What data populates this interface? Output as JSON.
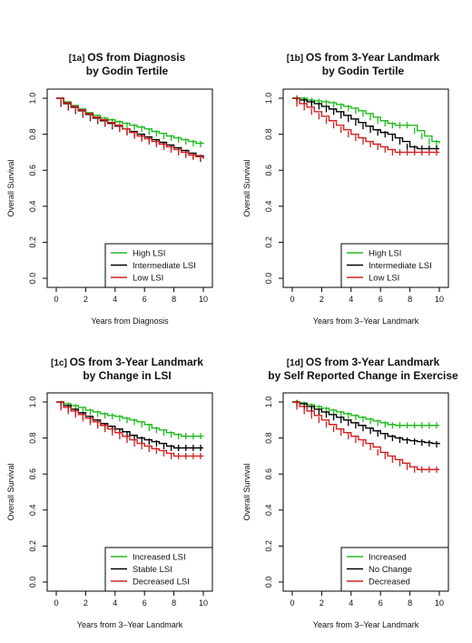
{
  "chart_data": [
    {
      "type": "line",
      "tag": "[1a]",
      "title": "OS from Diagnosis",
      "subtitle": "by Godin Tertile",
      "xlabel": "Years from Diagnosis",
      "ylabel": "Overall Survival",
      "xlim": [
        0,
        10
      ],
      "ylim": [
        0,
        1
      ],
      "xticks": [
        0,
        2,
        4,
        6,
        8,
        10
      ],
      "yticks": [
        0.0,
        0.2,
        0.4,
        0.6,
        0.8,
        1.0
      ],
      "ytick_labels": [
        "0.0",
        "0.2",
        "0.4",
        "0.6",
        "0.8",
        "1.0"
      ],
      "grid": false,
      "legend_position": "bottom-right",
      "series": [
        {
          "name": "High LSI",
          "color": "#22bb22",
          "x": [
            0,
            0.5,
            1,
            1.5,
            2,
            2.5,
            3,
            3.5,
            4,
            4.5,
            5,
            5.5,
            6,
            6.5,
            7,
            7.5,
            8,
            8.5,
            9,
            9.5,
            10
          ],
          "y": [
            1.0,
            0.98,
            0.96,
            0.94,
            0.92,
            0.905,
            0.89,
            0.88,
            0.87,
            0.86,
            0.85,
            0.84,
            0.83,
            0.815,
            0.805,
            0.79,
            0.78,
            0.77,
            0.76,
            0.75,
            0.745
          ]
        },
        {
          "name": "Intermediate LSI",
          "color": "#000000",
          "x": [
            0,
            0.5,
            1,
            1.5,
            2,
            2.5,
            3,
            3.5,
            4,
            4.5,
            5,
            5.5,
            6,
            6.5,
            7,
            7.5,
            8,
            8.5,
            9,
            9.5,
            10
          ],
          "y": [
            1.0,
            0.97,
            0.95,
            0.93,
            0.91,
            0.89,
            0.875,
            0.86,
            0.845,
            0.83,
            0.815,
            0.8,
            0.785,
            0.77,
            0.755,
            0.74,
            0.725,
            0.71,
            0.695,
            0.68,
            0.665
          ]
        },
        {
          "name": "Low LSI",
          "color": "#d62020",
          "x": [
            0,
            0.5,
            1,
            1.5,
            2,
            2.5,
            3,
            3.5,
            4,
            4.5,
            5,
            5.5,
            6,
            6.5,
            7,
            7.5,
            8,
            8.5,
            9,
            9.5,
            10
          ],
          "y": [
            1.0,
            0.975,
            0.955,
            0.935,
            0.915,
            0.895,
            0.88,
            0.865,
            0.85,
            0.83,
            0.81,
            0.79,
            0.775,
            0.76,
            0.745,
            0.73,
            0.715,
            0.7,
            0.685,
            0.675,
            0.67
          ]
        }
      ]
    },
    {
      "type": "line",
      "tag": "[1b]",
      "title": "OS from 3-Year Landmark",
      "subtitle": "by Godin Tertile",
      "xlabel": "Years from 3–Year Landmark",
      "ylabel": "Overall Survival",
      "xlim": [
        0,
        10
      ],
      "ylim": [
        0,
        1
      ],
      "xticks": [
        0,
        2,
        4,
        6,
        8,
        10
      ],
      "yticks": [
        0.0,
        0.2,
        0.4,
        0.6,
        0.8,
        1.0
      ],
      "ytick_labels": [
        "0.0",
        "0.2",
        "0.4",
        "0.6",
        "0.8",
        "1.0"
      ],
      "grid": false,
      "legend_position": "bottom-right",
      "series": [
        {
          "name": "High LSI",
          "color": "#22bb22",
          "x": [
            0,
            0.5,
            1,
            1.5,
            2,
            2.5,
            3,
            3.5,
            4,
            4.5,
            5,
            5.5,
            6,
            6.5,
            7,
            7.5,
            8,
            8.5,
            9,
            9.5,
            10
          ],
          "y": [
            1.0,
            1.0,
            0.99,
            0.985,
            0.98,
            0.975,
            0.965,
            0.955,
            0.945,
            0.93,
            0.915,
            0.895,
            0.875,
            0.86,
            0.85,
            0.85,
            0.85,
            0.82,
            0.79,
            0.76,
            0.75
          ]
        },
        {
          "name": "Intermediate LSI",
          "color": "#000000",
          "x": [
            0,
            0.5,
            1,
            1.5,
            2,
            2.5,
            3,
            3.5,
            4,
            4.5,
            5,
            5.5,
            6,
            6.5,
            7,
            7.5,
            8,
            8.5,
            9,
            9.5,
            10
          ],
          "y": [
            1.0,
            0.99,
            0.98,
            0.97,
            0.955,
            0.94,
            0.925,
            0.905,
            0.885,
            0.865,
            0.845,
            0.825,
            0.81,
            0.8,
            0.78,
            0.76,
            0.73,
            0.72,
            0.72,
            0.72,
            0.72
          ]
        },
        {
          "name": "Low LSI",
          "color": "#d62020",
          "x": [
            0,
            0.5,
            1,
            1.5,
            2,
            2.5,
            3,
            3.5,
            4,
            4.5,
            5,
            5.5,
            6,
            6.5,
            7,
            7.5,
            8,
            8.5,
            9,
            9.5,
            10
          ],
          "y": [
            1.0,
            0.97,
            0.95,
            0.925,
            0.9,
            0.875,
            0.85,
            0.825,
            0.8,
            0.78,
            0.76,
            0.745,
            0.73,
            0.715,
            0.7,
            0.7,
            0.7,
            0.7,
            0.7,
            0.7,
            0.7
          ]
        }
      ]
    },
    {
      "type": "line",
      "tag": "[1c]",
      "title": "OS from 3-Year Landmark",
      "subtitle": "by Change in LSI",
      "xlabel": "Years from 3–Year Landmark",
      "ylabel": "Overall Survival",
      "xlim": [
        0,
        10
      ],
      "ylim": [
        0,
        1
      ],
      "xticks": [
        0,
        2,
        4,
        6,
        8,
        10
      ],
      "yticks": [
        0.0,
        0.2,
        0.4,
        0.6,
        0.8,
        1.0
      ],
      "ytick_labels": [
        "0.0",
        "0.2",
        "0.4",
        "0.6",
        "0.8",
        "1.0"
      ],
      "grid": false,
      "legend_position": "bottom-right",
      "series": [
        {
          "name": "Increased LSI",
          "color": "#22bb22",
          "x": [
            0,
            0.5,
            1,
            1.5,
            2,
            2.5,
            3,
            3.5,
            4,
            4.5,
            5,
            5.5,
            6,
            6.5,
            7,
            7.5,
            8,
            8.5,
            9,
            9.5,
            10
          ],
          "y": [
            1.0,
            0.99,
            0.98,
            0.97,
            0.955,
            0.945,
            0.935,
            0.925,
            0.92,
            0.91,
            0.9,
            0.89,
            0.875,
            0.855,
            0.845,
            0.83,
            0.82,
            0.81,
            0.81,
            0.81,
            0.81
          ]
        },
        {
          "name": "Stable LSI",
          "color": "#000000",
          "x": [
            0,
            0.5,
            1,
            1.5,
            2,
            2.5,
            3,
            3.5,
            4,
            4.5,
            5,
            5.5,
            6,
            6.5,
            7,
            7.5,
            8,
            8.5,
            9,
            9.5,
            10
          ],
          "y": [
            1.0,
            0.98,
            0.96,
            0.94,
            0.92,
            0.9,
            0.88,
            0.865,
            0.85,
            0.835,
            0.815,
            0.8,
            0.79,
            0.78,
            0.77,
            0.755,
            0.745,
            0.745,
            0.745,
            0.745,
            0.745
          ]
        },
        {
          "name": "Decreased LSI",
          "color": "#d62020",
          "x": [
            0,
            0.5,
            1,
            1.5,
            2,
            2.5,
            3,
            3.5,
            4,
            4.5,
            5,
            5.5,
            6,
            6.5,
            7,
            7.5,
            8,
            8.5,
            9,
            9.5,
            10
          ],
          "y": [
            1.0,
            0.97,
            0.95,
            0.93,
            0.91,
            0.89,
            0.87,
            0.85,
            0.83,
            0.81,
            0.79,
            0.77,
            0.755,
            0.74,
            0.73,
            0.715,
            0.7,
            0.7,
            0.7,
            0.7,
            0.7
          ]
        }
      ]
    },
    {
      "type": "line",
      "tag": "[1d]",
      "title": "OS from 3-Year Landmark",
      "subtitle": "by Self Reported Change in Exercise",
      "xlabel": "Years from 3–Year Landmark",
      "ylabel": "Overall Survival",
      "xlim": [
        0,
        10
      ],
      "ylim": [
        0,
        1
      ],
      "xticks": [
        0,
        2,
        4,
        6,
        8,
        10
      ],
      "yticks": [
        0.0,
        0.2,
        0.4,
        0.6,
        0.8,
        1.0
      ],
      "ytick_labels": [
        "0.0",
        "0.2",
        "0.4",
        "0.6",
        "0.8",
        "1.0"
      ],
      "grid": false,
      "legend_position": "bottom-right",
      "series": [
        {
          "name": "Increased",
          "color": "#22bb22",
          "x": [
            0,
            0.5,
            1,
            1.5,
            2,
            2.5,
            3,
            3.5,
            4,
            4.5,
            5,
            5.5,
            6,
            6.5,
            7,
            7.5,
            8,
            8.5,
            9,
            9.5,
            10
          ],
          "y": [
            1.0,
            0.995,
            0.985,
            0.975,
            0.965,
            0.955,
            0.945,
            0.935,
            0.925,
            0.915,
            0.905,
            0.895,
            0.885,
            0.875,
            0.87,
            0.87,
            0.87,
            0.87,
            0.87,
            0.87,
            0.87
          ]
        },
        {
          "name": "No Change",
          "color": "#000000",
          "x": [
            0,
            0.5,
            1,
            1.5,
            2,
            2.5,
            3,
            3.5,
            4,
            4.5,
            5,
            5.5,
            6,
            6.5,
            7,
            7.5,
            8,
            8.5,
            9,
            9.5,
            10
          ],
          "y": [
            1.0,
            0.99,
            0.975,
            0.96,
            0.945,
            0.93,
            0.915,
            0.9,
            0.885,
            0.87,
            0.855,
            0.84,
            0.825,
            0.81,
            0.8,
            0.79,
            0.785,
            0.78,
            0.775,
            0.77,
            0.765
          ]
        },
        {
          "name": "Decreased",
          "color": "#d62020",
          "x": [
            0,
            0.5,
            1,
            1.5,
            2,
            2.5,
            3,
            3.5,
            4,
            4.5,
            5,
            5.5,
            6,
            6.5,
            7,
            7.5,
            8,
            8.5,
            9,
            9.5,
            10
          ],
          "y": [
            1.0,
            0.975,
            0.95,
            0.925,
            0.9,
            0.875,
            0.85,
            0.83,
            0.81,
            0.79,
            0.77,
            0.75,
            0.72,
            0.7,
            0.68,
            0.66,
            0.64,
            0.625,
            0.625,
            0.625,
            0.625
          ]
        }
      ]
    }
  ]
}
